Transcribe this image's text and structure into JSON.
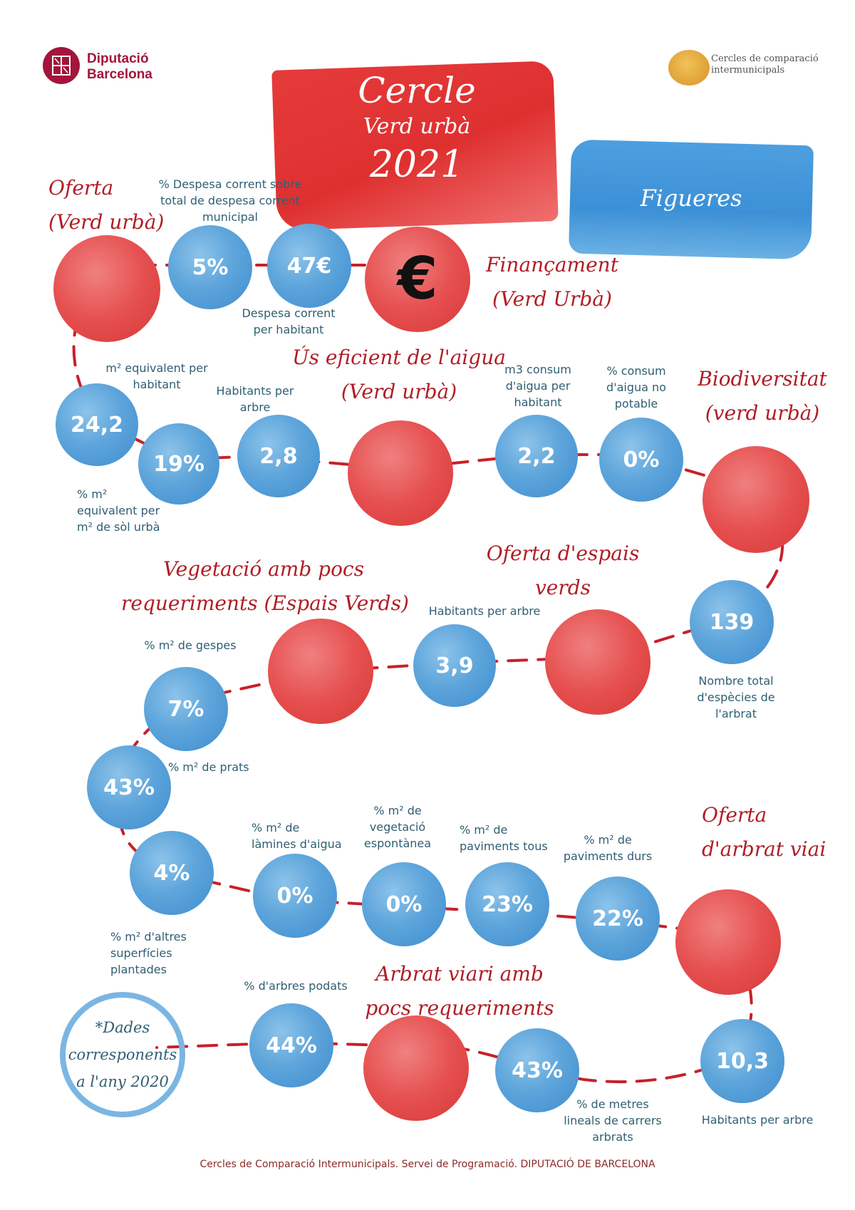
{
  "header": {
    "org_line1": "Diputació",
    "org_line2": "Barcelona",
    "brand_line1": "Cercles de comparació",
    "brand_line2": "intermunicipals",
    "title_line1": "Cercle",
    "title_line2": "Verd urbà",
    "title_line3": "2021",
    "municipality": "Figueres"
  },
  "sections": {
    "oferta_l1": "Oferta",
    "oferta_l2": "(Verd urbà)",
    "financament_l1": "Finançament",
    "financament_l2": "(Verd Urbà)",
    "aigua_l1": "Ús eficient de l'aigua",
    "aigua_l2": "(Verd urbà)",
    "biodiversitat_l1": "Biodiversitat",
    "biodiversitat_l2": "(verd urbà)",
    "vegetacio_l1": "Vegetació amb pocs",
    "vegetacio_l2": "requeriments (Espais Verds)",
    "espais_l1": "Oferta d'espais",
    "espais_l2": "verds",
    "arbrat_l1": "Oferta",
    "arbrat_l2": "d'arbrat viai",
    "arbrat_pocs_l1": "Arbrat viari amb",
    "arbrat_pocs_l2": "pocs requeriments"
  },
  "metrics": {
    "m1": {
      "value": "5%",
      "label": "% Despesa corrent  sobre total de despesa corrent municipal"
    },
    "m2": {
      "value": "47€",
      "label": "Despesa corrent per habitant"
    },
    "m3": {
      "value": "24,2",
      "label": "m² equivalent per habitant"
    },
    "m4": {
      "value": "19%",
      "label": "% m² equivalent per m² de sòl urbà"
    },
    "m5": {
      "value": "2,8",
      "label": "Habitants per arbre"
    },
    "m6": {
      "value": "2,2",
      "label": "m3 consum d'aigua per habitant"
    },
    "m7": {
      "value": "0%",
      "label": "% consum d'aigua no potable"
    },
    "m8": {
      "value": "139",
      "label": "Nombre total d'espècies de l'arbrat"
    },
    "m9": {
      "value": "3,9",
      "label": "Habitants per arbre"
    },
    "m10": {
      "value": "7%",
      "label": "% m² de gespes"
    },
    "m11": {
      "value": "43%",
      "label": "% m² de prats"
    },
    "m12": {
      "value": "4%",
      "label": "% m² d'altres superfícies plantades"
    },
    "m13": {
      "value": "0%",
      "label": "% m² de làmines d'aigua"
    },
    "m14": {
      "value": "0%",
      "label": "% m² de vegetació espontànea"
    },
    "m15": {
      "value": "23%",
      "label": "% m² de paviments tous"
    },
    "m16": {
      "value": "22%",
      "label": "% m² de paviments durs"
    },
    "m17": {
      "value": "10,3",
      "label": "Habitants per arbre"
    },
    "m18": {
      "value": "43%",
      "label": "% de metres lineals de carrers arbrats"
    },
    "m19": {
      "value": "44%",
      "label": "% d'arbres podats"
    }
  },
  "note": {
    "line1": "*Dades",
    "line2": "corresponents",
    "line3": "a l'any 2020"
  },
  "footer": "Cercles de Comparació Intermunicipals. Servei de Programació. DIPUTACIÓ DE BARCELONA",
  "colors": {
    "blue": "#5ea5db",
    "red": "#e65050",
    "title_red": "#b01d25",
    "label_teal": "#2f5f73",
    "dash_red": "#c8202a"
  },
  "icons": {
    "euro": "euro-icon",
    "org_logo": "diputacio-logo-icon",
    "brand_logo": "cercles-logo-icon"
  }
}
